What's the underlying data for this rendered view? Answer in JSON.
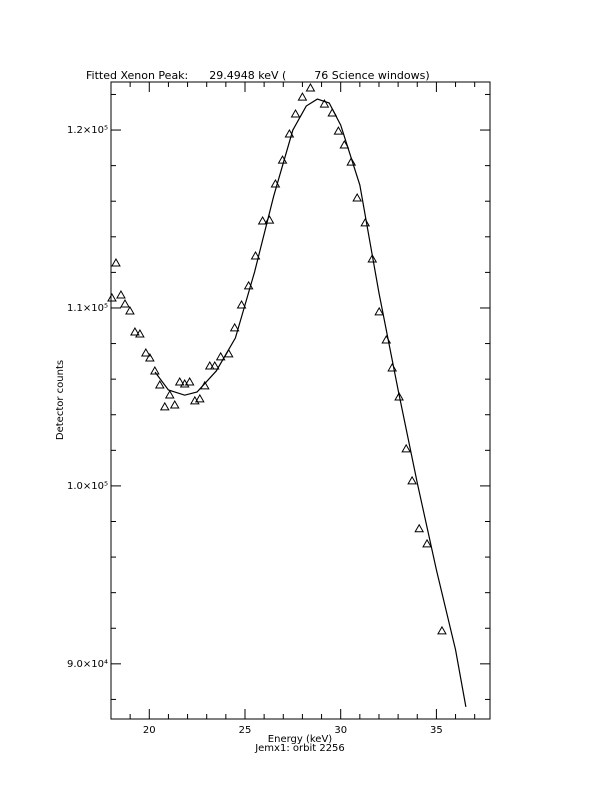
{
  "chart_data": {
    "type": "scatter",
    "title": "Fitted Xenon Peak:      29.4948 keV (        76 Science windows)",
    "x_label": "Energy (keV)",
    "subtitle": "Jemx1: orbit 2256",
    "y_label": "Detector counts",
    "xlim": [
      18,
      37.8
    ],
    "ylim": [
      86900,
      122700
    ],
    "xticks": [
      20,
      25,
      30,
      35
    ],
    "yticks": [
      {
        "value": 90000,
        "label": "9.0×10⁴"
      },
      {
        "value": 100000,
        "label": "1.0×10⁵"
      },
      {
        "value": 110000,
        "label": "1.1×10⁵"
      },
      {
        "value": 120000,
        "label": "1.2×10⁵"
      }
    ],
    "xminorticks": [
      19,
      21,
      22,
      23,
      24,
      26,
      27,
      28,
      29,
      31,
      32,
      33,
      34,
      36,
      37
    ],
    "yminorticks": [
      88000,
      92000,
      94000,
      96000,
      98000,
      102000,
      104000,
      106000,
      108000,
      112000,
      114000,
      116000,
      118000,
      122000
    ],
    "points": {
      "color": "#000000",
      "x": [
        18.05,
        18.26,
        18.52,
        18.73,
        18.99,
        19.25,
        19.51,
        19.82,
        20.03,
        20.29,
        20.55,
        20.81,
        21.07,
        21.33,
        21.59,
        21.85,
        22.11,
        22.38,
        22.64,
        22.9,
        23.16,
        23.42,
        23.73,
        24.15,
        24.46,
        24.82,
        25.19,
        25.55,
        25.92,
        26.28,
        26.59,
        26.96,
        27.32,
        27.64,
        28.0,
        28.42,
        29.15,
        29.56,
        29.88,
        30.19,
        30.55,
        30.86,
        31.28,
        31.65,
        32.01,
        32.38,
        32.69,
        33.05,
        33.42,
        33.73,
        34.1,
        34.51,
        35.29
      ],
      "y": [
        110560,
        112530,
        110730,
        110225,
        109830,
        108650,
        108540,
        107470,
        107190,
        106460,
        105670,
        104440,
        105110,
        104550,
        105840,
        105730,
        105840,
        104780,
        104890,
        105620,
        106740,
        106740,
        107250,
        107420,
        108880,
        110170,
        111240,
        112920,
        114890,
        114940,
        116970,
        118310,
        119780,
        120900,
        121850,
        122360,
        121460,
        120960,
        119940,
        119160,
        118200,
        116180,
        114780,
        112750,
        109780,
        108200,
        106630,
        105000,
        102080,
        100280,
        97590,
        96740,
        91850
      ]
    },
    "fit": {
      "color": "#000000",
      "x": [
        20.3,
        21,
        21.85,
        22.5,
        23.5,
        24.5,
        25.5,
        26.5,
        27.5,
        28.2,
        28.78,
        29.4,
        30,
        31,
        32,
        33,
        34,
        35,
        36,
        36.54
      ],
      "y": [
        106400,
        105390,
        105100,
        105280,
        106460,
        108320,
        112020,
        116290,
        120000,
        121350,
        121740,
        121520,
        120280,
        116910,
        110840,
        105390,
        100170,
        95280,
        90790,
        87580
      ]
    }
  }
}
